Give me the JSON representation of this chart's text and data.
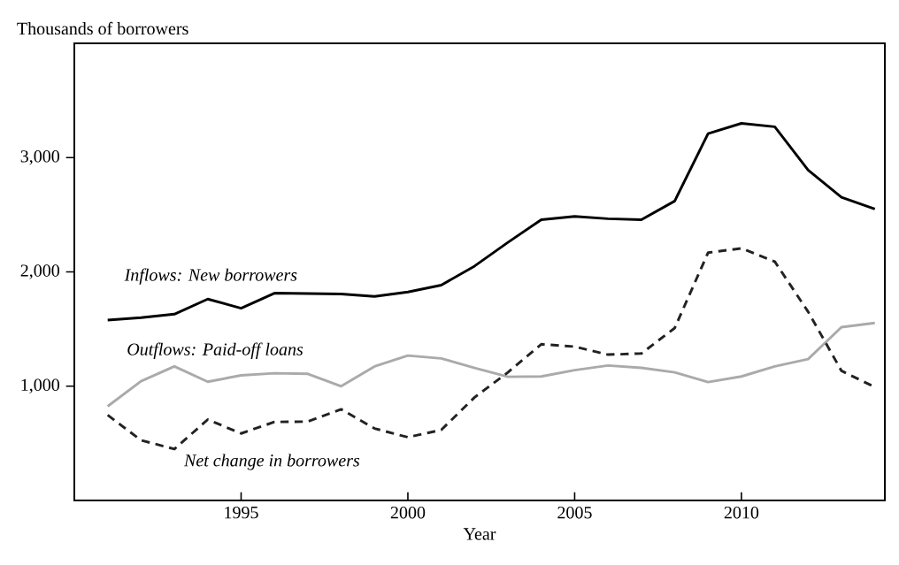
{
  "chart_data": {
    "type": "line",
    "xlabel": "Year",
    "ylabel": "Thousands of borrowers",
    "x": [
      1991,
      1992,
      1993,
      1994,
      1995,
      1996,
      1997,
      1998,
      1999,
      2000,
      2001,
      2002,
      2003,
      2004,
      2005,
      2006,
      2007,
      2008,
      2009,
      2010,
      2011,
      2012,
      2013,
      2014
    ],
    "series": [
      {
        "name": "Inflows: New borrowers",
        "color": "#000000",
        "line_style": "solid",
        "values": [
          1578,
          1600,
          1630,
          1762,
          1682,
          1814,
          1811,
          1806,
          1785,
          1824,
          1884,
          2051,
          2258,
          2457,
          2485,
          2465,
          2457,
          2620,
          3210,
          3300,
          3270,
          2891,
          2653,
          2550
        ]
      },
      {
        "name": "Outflows: Paid-off loans",
        "color": "#aaaaaa",
        "line_style": "solid",
        "values": [
          824,
          1044,
          1173,
          1039,
          1095,
          1113,
          1108,
          1000,
          1173,
          1268,
          1243,
          1160,
          1082,
          1085,
          1140,
          1181,
          1160,
          1121,
          1036,
          1085,
          1173,
          1237,
          1516,
          1553
        ]
      },
      {
        "name": "Net change in borrowers",
        "color": "#222222",
        "line_style": "dashed",
        "values": [
          747,
          527,
          450,
          708,
          586,
          687,
          690,
          798,
          630,
          553,
          617,
          902,
          1121,
          1367,
          1346,
          1276,
          1286,
          1509,
          2168,
          2206,
          2090,
          1651,
          1134,
          992
        ]
      }
    ],
    "xlim": [
      1990,
      2014.3
    ],
    "ylim": [
      0,
      4000
    ],
    "xticks": [
      1995,
      2000,
      2005,
      2010
    ],
    "yticks": [
      {
        "value": 1000,
        "label": "1,000"
      },
      {
        "value": 2000,
        "label": "2,000"
      },
      {
        "value": 3000,
        "label": "3,000"
      }
    ],
    "marker": "none"
  }
}
